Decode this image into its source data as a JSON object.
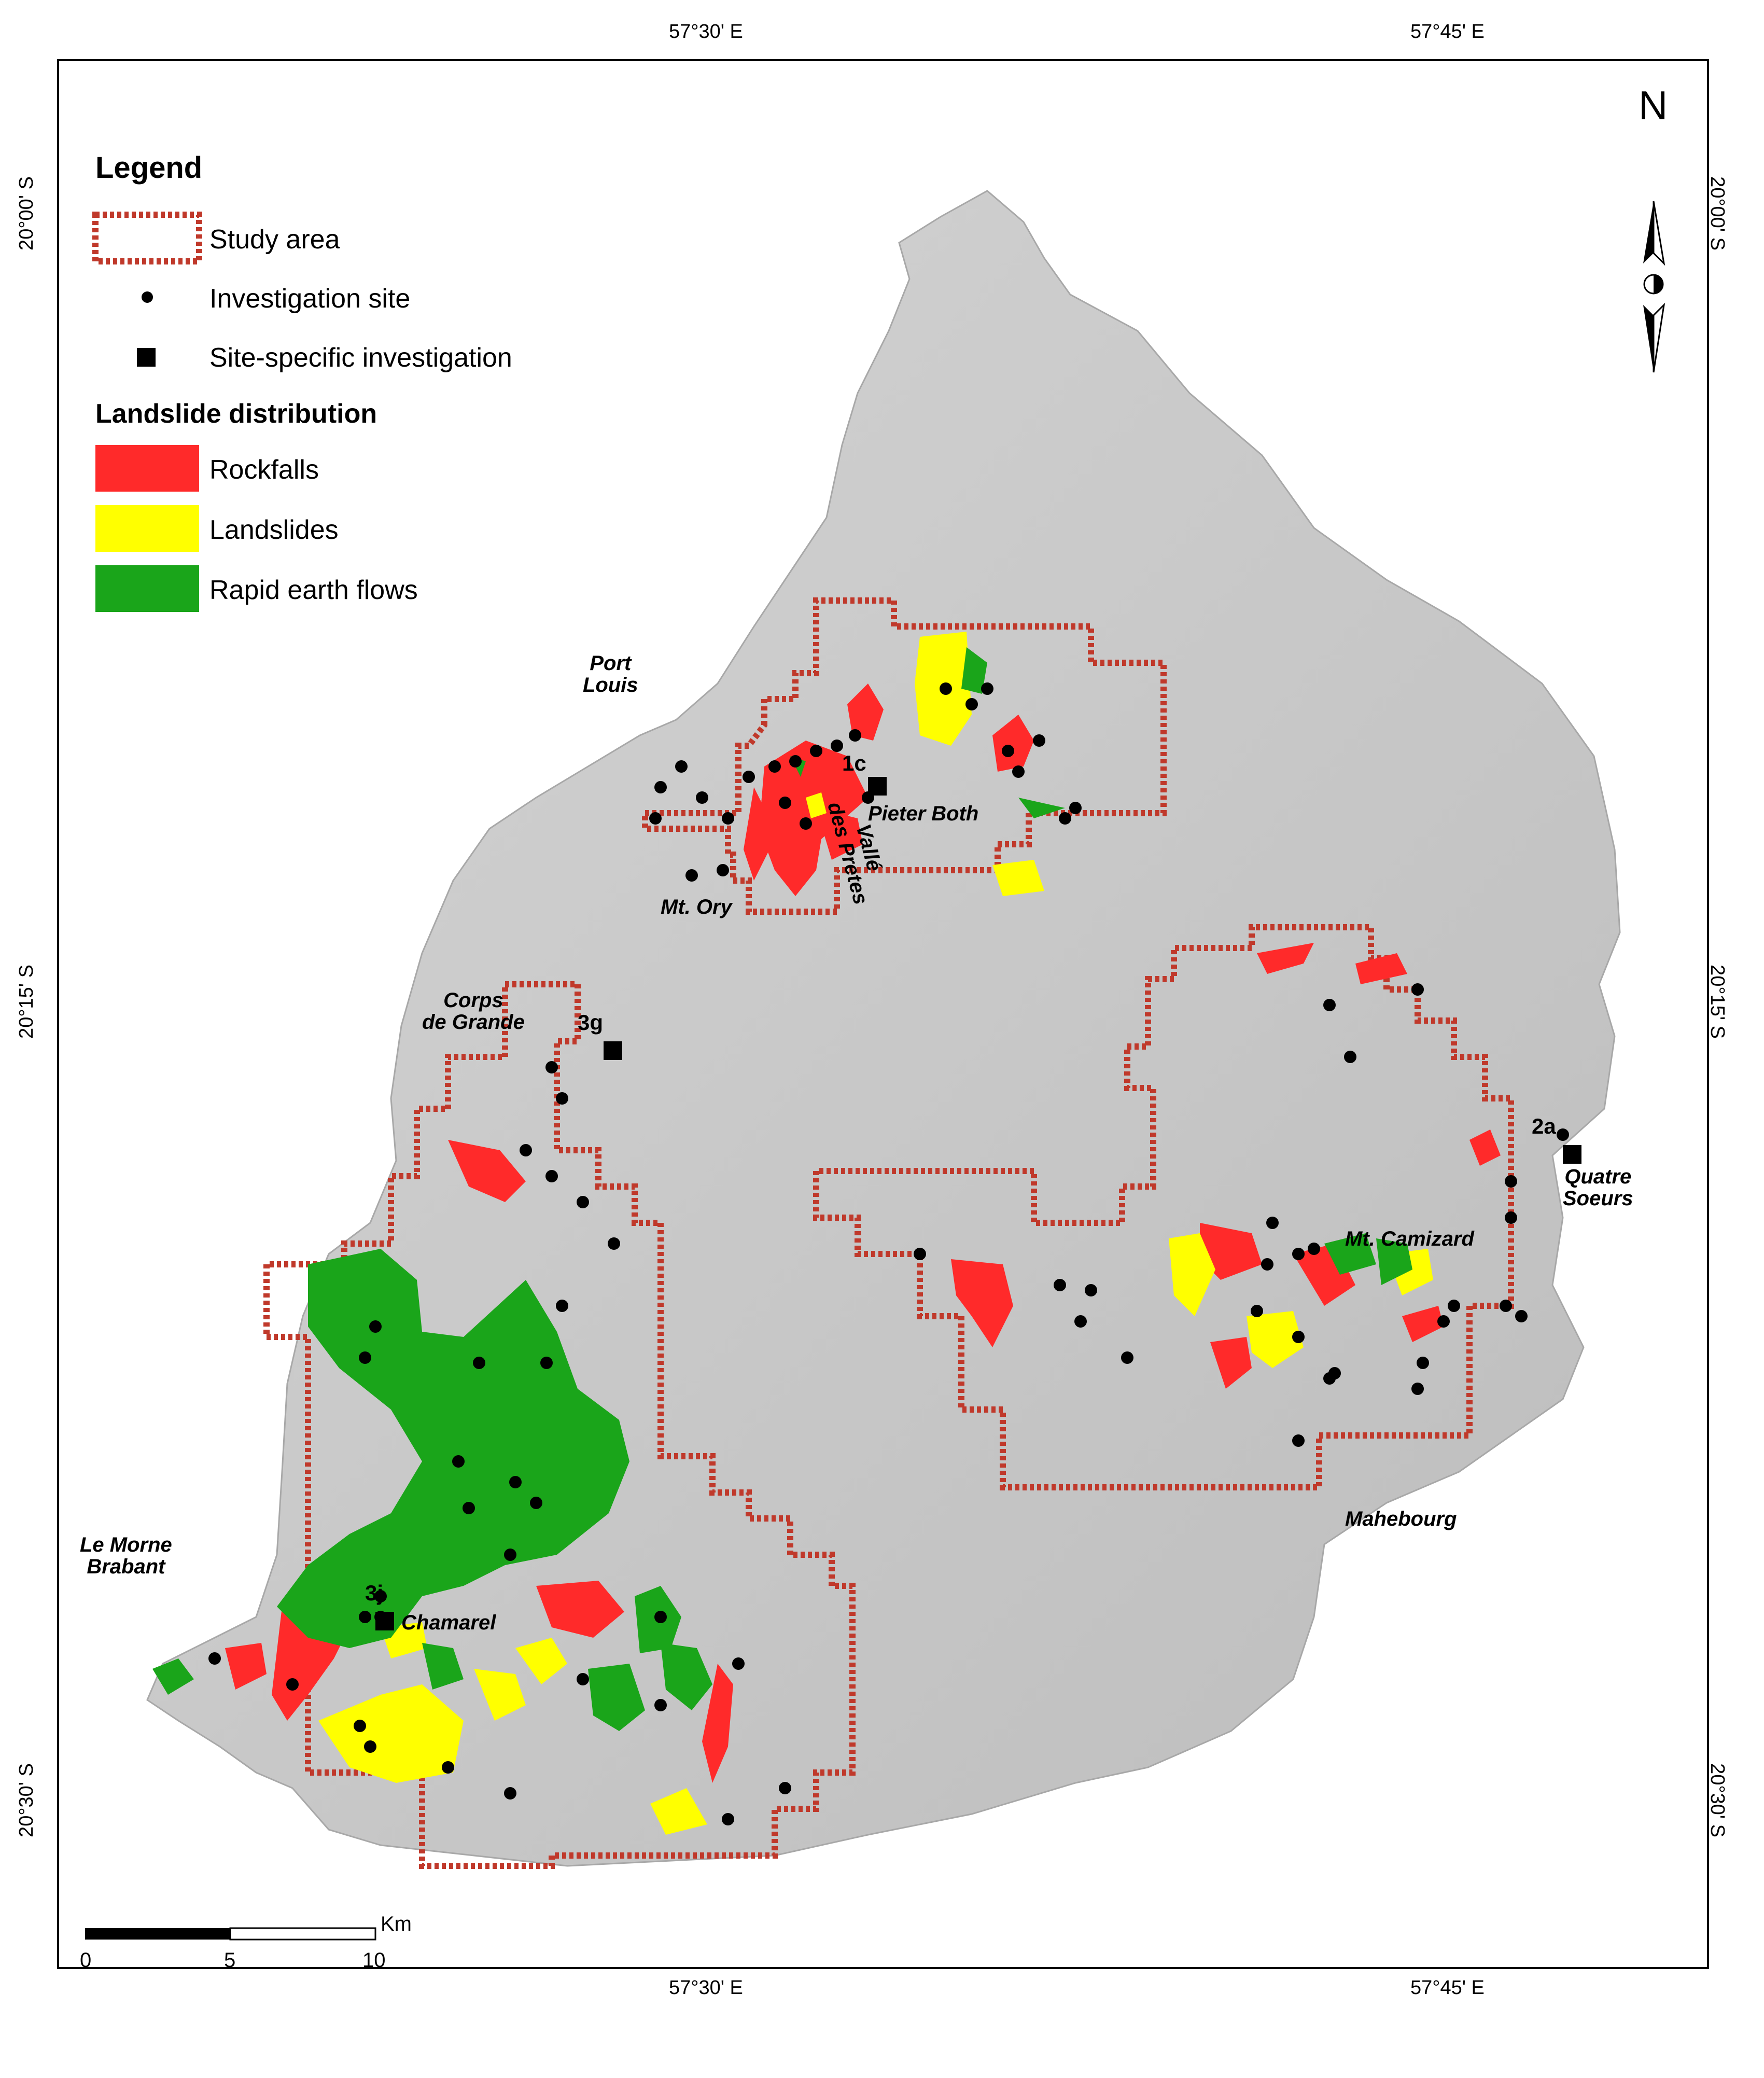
{
  "coordinates": {
    "top": [
      "57°30' E",
      "57°45' E"
    ],
    "bottom": [
      "57°30' E",
      "57°45' E"
    ],
    "left": [
      "20°00' S",
      "20°15' S",
      "20°30' S"
    ],
    "right": [
      "20°00' S",
      "20°15' S",
      "20°30' S"
    ]
  },
  "north_label": "N",
  "legend": {
    "title": "Legend",
    "items": [
      {
        "label": "Study area"
      },
      {
        "label": "Investigation site"
      },
      {
        "label": "Site-specific investigation"
      }
    ],
    "section_title": "Landslide distribution",
    "classes": [
      {
        "label": "Rockfalls",
        "color": "#ff2a2a"
      },
      {
        "label": "Landslides",
        "color": "#ffff00"
      },
      {
        "label": "Rapid earth flows",
        "color": "#1aa51a"
      }
    ]
  },
  "places": {
    "port_louis": "Port\nLouis",
    "valle_des_pretes": "Vallé\ndes Pretes",
    "pieter_both": "Pieter Both",
    "mt_ory": "Mt. Ory",
    "corps_de_grande": "Corps\nde Grande",
    "quatre_soeurs": "Quatre\nSoeurs",
    "mt_camizard": "Mt. Camizard",
    "mahebourg": "Mahebourg",
    "le_morne": "Le Morne\nBrabant",
    "chamarel": "Chamarel"
  },
  "site_labels": {
    "s1c": "1c",
    "s3g": "3g",
    "s2a": "2a",
    "s3j": "3j"
  },
  "scale": {
    "ticks": [
      "0",
      "5",
      "10"
    ],
    "unit": "Km"
  },
  "colors": {
    "terrain": "#c8c8c8",
    "study_area": "#c0392b",
    "rockfalls": "#ff2a2a",
    "landslides": "#ffff00",
    "earthflows": "#1aa51a"
  }
}
